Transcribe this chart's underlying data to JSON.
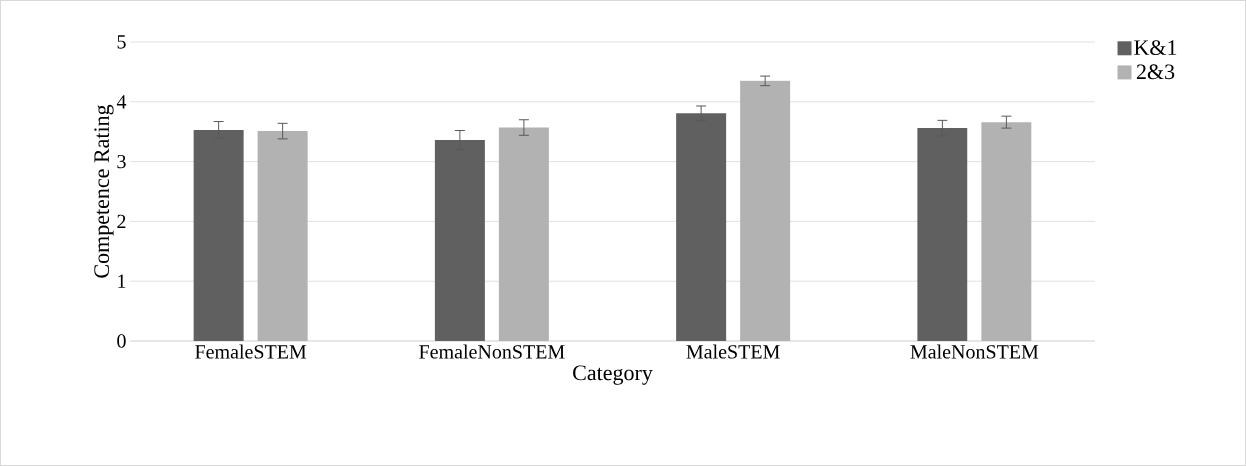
{
  "chart_data": {
    "type": "bar",
    "xlabel": "Category",
    "ylabel": "Competence Rating",
    "categories": [
      "FemaleSTEM",
      "FemaleNonSTEM",
      "MaleSTEM",
      "MaleNonSTEM"
    ],
    "series": [
      {
        "name": "K&1",
        "color": "#606060",
        "values": [
          3.53,
          3.36,
          3.81,
          3.56
        ],
        "errors": [
          0.14,
          0.16,
          0.12,
          0.13
        ]
      },
      {
        "name": "2&3",
        "color": "#b2b2b2",
        "values": [
          3.51,
          3.57,
          4.35,
          3.66
        ],
        "errors": [
          0.13,
          0.13,
          0.08,
          0.1
        ]
      }
    ],
    "ylim": [
      0,
      5
    ],
    "yticks": [
      0,
      1,
      2,
      3,
      4,
      5
    ],
    "grid": "y",
    "legend": "top right"
  }
}
